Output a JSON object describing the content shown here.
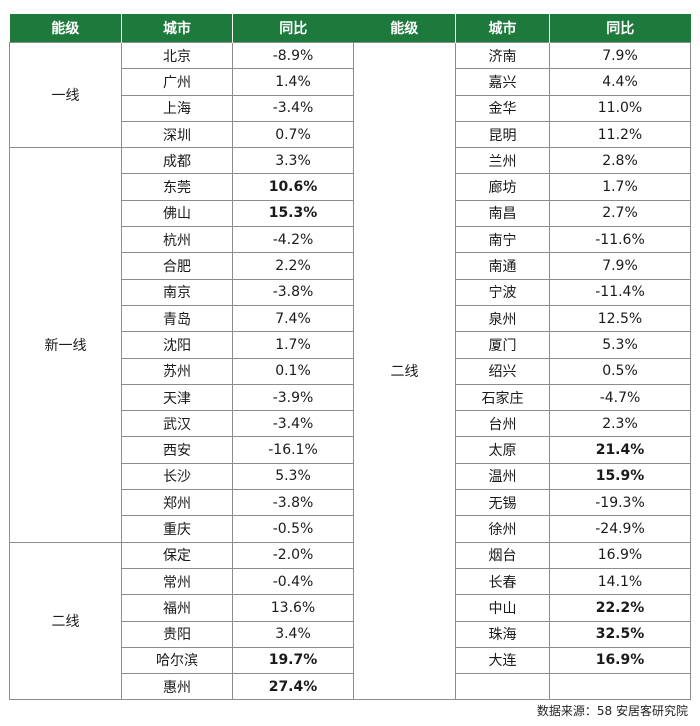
{
  "left": {
    "headers": [
      "能级",
      "城市",
      "同比"
    ],
    "groups": [
      {
        "tier": "一线",
        "rows": [
          {
            "city": "北京",
            "change": "-8.9%",
            "bold": false
          },
          {
            "city": "广州",
            "change": "1.4%",
            "bold": false
          },
          {
            "city": "上海",
            "change": "-3.4%",
            "bold": false
          },
          {
            "city": "深圳",
            "change": "0.7%",
            "bold": false
          }
        ]
      },
      {
        "tier": "新一线",
        "rows": [
          {
            "city": "成都",
            "change": "3.3%",
            "bold": false
          },
          {
            "city": "东莞",
            "change": "10.6%",
            "bold": true
          },
          {
            "city": "佛山",
            "change": "15.3%",
            "bold": true
          },
          {
            "city": "杭州",
            "change": "-4.2%",
            "bold": false
          },
          {
            "city": "合肥",
            "change": "2.2%",
            "bold": false
          },
          {
            "city": "南京",
            "change": "-3.8%",
            "bold": false
          },
          {
            "city": "青岛",
            "change": "7.4%",
            "bold": false
          },
          {
            "city": "沈阳",
            "change": "1.7%",
            "bold": false
          },
          {
            "city": "苏州",
            "change": "0.1%",
            "bold": false
          },
          {
            "city": "天津",
            "change": "-3.9%",
            "bold": false
          },
          {
            "city": "武汉",
            "change": "-3.4%",
            "bold": false
          },
          {
            "city": "西安",
            "change": "-16.1%",
            "bold": false
          },
          {
            "city": "长沙",
            "change": "5.3%",
            "bold": false
          },
          {
            "city": "郑州",
            "change": "-3.8%",
            "bold": false
          },
          {
            "city": "重庆",
            "change": "-0.5%",
            "bold": false
          }
        ]
      },
      {
        "tier": "二线",
        "rows": [
          {
            "city": "保定",
            "change": "-2.0%",
            "bold": false
          },
          {
            "city": "常州",
            "change": "-0.4%",
            "bold": false
          },
          {
            "city": "福州",
            "change": "13.6%",
            "bold": false
          },
          {
            "city": "贵阳",
            "change": "3.4%",
            "bold": false
          },
          {
            "city": "哈尔滨",
            "change": "19.7%",
            "bold": true
          },
          {
            "city": "惠州",
            "change": "27.4%",
            "bold": true
          }
        ]
      }
    ]
  },
  "right": {
    "headers": [
      "能级",
      "城市",
      "同比"
    ],
    "groups": [
      {
        "tier": "二线",
        "rows": [
          {
            "city": "济南",
            "change": "7.9%",
            "bold": false
          },
          {
            "city": "嘉兴",
            "change": "4.4%",
            "bold": false
          },
          {
            "city": "金华",
            "change": "11.0%",
            "bold": false
          },
          {
            "city": "昆明",
            "change": "11.2%",
            "bold": false
          },
          {
            "city": "兰州",
            "change": "2.8%",
            "bold": false
          },
          {
            "city": "廊坊",
            "change": "1.7%",
            "bold": false
          },
          {
            "city": "南昌",
            "change": "2.7%",
            "bold": false
          },
          {
            "city": "南宁",
            "change": "-11.6%",
            "bold": false
          },
          {
            "city": "南通",
            "change": "7.9%",
            "bold": false
          },
          {
            "city": "宁波",
            "change": "-11.4%",
            "bold": false
          },
          {
            "city": "泉州",
            "change": "12.5%",
            "bold": false
          },
          {
            "city": "厦门",
            "change": "5.3%",
            "bold": false
          },
          {
            "city": "绍兴",
            "change": "0.5%",
            "bold": false
          },
          {
            "city": "石家庄",
            "change": "-4.7%",
            "bold": false
          },
          {
            "city": "台州",
            "change": "2.3%",
            "bold": false
          },
          {
            "city": "太原",
            "change": "21.4%",
            "bold": true
          },
          {
            "city": "温州",
            "change": "15.9%",
            "bold": true
          },
          {
            "city": "无锡",
            "change": "-19.3%",
            "bold": false
          },
          {
            "city": "徐州",
            "change": "-24.9%",
            "bold": false
          },
          {
            "city": "烟台",
            "change": "16.9%",
            "bold": false
          },
          {
            "city": "长春",
            "change": "14.1%",
            "bold": false
          },
          {
            "city": "中山",
            "change": "22.2%",
            "bold": true
          },
          {
            "city": "珠海",
            "change": "32.5%",
            "bold": true
          },
          {
            "city": "大连",
            "change": "16.9%",
            "bold": true
          },
          {
            "city": "",
            "change": "",
            "bold": false
          }
        ]
      }
    ]
  },
  "source": "数据来源：58 安居客研究院",
  "colors": {
    "header_bg": "#1e7a3c",
    "header_text": "#ffffff",
    "border": "#8c8c8c"
  }
}
